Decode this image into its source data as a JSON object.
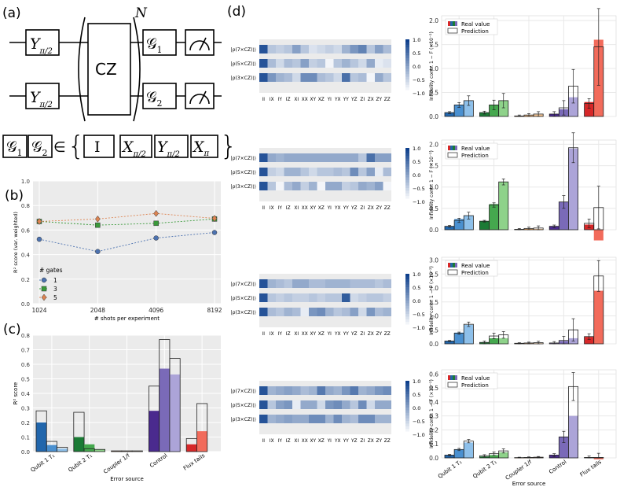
{
  "panel_labels": {
    "a": "(a)",
    "b": "(b)",
    "c": "(c)",
    "d": "(d)"
  },
  "circuit": {
    "y_gate": "Y",
    "y_sub": "π/2",
    "cz": "CZ",
    "repeat": "N",
    "g1": "𝒢",
    "g1_sub": "1",
    "g2": "𝒢",
    "g2_sub": "2",
    "set_lhs_a": "𝒢",
    "set_lhs_a_sub": "1",
    "set_lhs_b": "𝒢",
    "set_lhs_b_sub": "2",
    "member": "∈",
    "gates": [
      {
        "s": "I",
        "sub": ""
      },
      {
        "s": "X",
        "sub": "π/2"
      },
      {
        "s": "Y",
        "sub": "π/2"
      },
      {
        "s": "X",
        "sub": "π"
      }
    ]
  },
  "chart_data": [
    {
      "id": "b",
      "type": "line",
      "ylabel": "R² score (var. weighted)",
      "xlabel": "# shots per experiment",
      "categories": [
        "1024",
        "2048",
        "4096",
        "8192"
      ],
      "ylim": [
        0,
        1
      ],
      "yticks": [
        "0.0",
        "0.2",
        "0.4",
        "0.6",
        "0.8",
        "1.0"
      ],
      "legend_title": "# gates",
      "series": [
        {
          "name": "1",
          "color": "#4c72b0",
          "marker": "circle",
          "values": [
            0.525,
            0.425,
            0.535,
            0.58
          ]
        },
        {
          "name": "3",
          "color": "#3a9a3a",
          "marker": "square",
          "values": [
            0.67,
            0.64,
            0.655,
            0.69
          ]
        },
        {
          "name": "5",
          "color": "#dd8452",
          "marker": "diamond",
          "values": [
            0.67,
            0.69,
            0.735,
            0.695
          ]
        }
      ]
    },
    {
      "id": "c",
      "type": "bar",
      "ylabel": "R² score",
      "xlabel": "Error source",
      "ylim": [
        0,
        0.8
      ],
      "yticks": [
        "0.0",
        "0.1",
        "0.2",
        "0.3",
        "0.4",
        "0.5",
        "0.6",
        "0.7",
        "0.8"
      ],
      "categories": [
        "Qubit 1 T₁",
        "Qubit 2 T₁",
        "Coupler 1/f",
        "Control",
        "Flux tails"
      ],
      "outline": [
        [
          0.28,
          0.07,
          0.03
        ],
        [
          0.27,
          0.02,
          0.015
        ],
        [
          0.005,
          0.005,
          0.005
        ],
        [
          0.45,
          0.77,
          0.64
        ],
        [
          0.09,
          0.33,
          0.0
        ]
      ],
      "filled": [
        [
          0.2,
          0.045,
          0.02
        ],
        [
          0.1,
          0.05,
          0.015
        ],
        [
          0.002,
          0.002,
          0.002
        ],
        [
          0.28,
          0.57,
          0.53
        ],
        [
          0.05,
          0.14,
          0.0
        ]
      ]
    },
    {
      "id": "d",
      "type": "bar",
      "legend": [
        "Real value",
        "Prediction"
      ],
      "ylabel": "Infidelity contr. 1 − F (×10⁻²)",
      "xlabel": "Error source",
      "categories": [
        "Qubit 1 T₁",
        "Qubit 2 T₁",
        "Coupler 1/f",
        "Control",
        "Flux tails"
      ],
      "rows": [
        {
          "ylim": [
            0,
            2.1
          ],
          "yticks": [
            "0.0",
            "0.5",
            "1.0",
            "1.5",
            "2.0"
          ],
          "real": [
            [
              0.08,
              0.24,
              0.33
            ],
            [
              0.08,
              0.24,
              0.33
            ],
            [
              0.0,
              0.02,
              0.04
            ],
            [
              0.05,
              0.15,
              0.4
            ],
            [
              0.3,
              1.6,
              0
            ]
          ],
          "pred": [
            [
              0.08,
              0.24,
              0.33
            ],
            [
              0.08,
              0.24,
              0.33
            ],
            [
              0.01,
              0.03,
              0.05
            ],
            [
              0.05,
              0.18,
              0.63
            ],
            [
              0.27,
              1.45,
              0
            ]
          ],
          "err": [
            [
              0.02,
              0.05,
              0.1
            ],
            [
              0.03,
              0.1,
              0.15
            ],
            [
              0.02,
              0.03,
              0.05
            ],
            [
              0.05,
              0.15,
              0.35
            ],
            [
              0.1,
              0.8,
              0
            ]
          ]
        },
        {
          "ylim": [
            0,
            2.1
          ],
          "yticks": [
            "0.0",
            "0.5",
            "1.0",
            "1.5",
            "2.0"
          ],
          "real": [
            [
              0.08,
              0.25,
              0.33
            ],
            [
              0.2,
              0.6,
              1.12
            ],
            [
              0.01,
              0.02,
              0.02
            ],
            [
              0.08,
              0.65,
              1.9
            ],
            [
              0.12,
              -0.25,
              0
            ]
          ],
          "pred": [
            [
              0.08,
              0.22,
              0.33
            ],
            [
              0.2,
              0.58,
              1.12
            ],
            [
              0.01,
              0.03,
              0.04
            ],
            [
              0.08,
              0.65,
              1.92
            ],
            [
              0.15,
              0.52,
              0
            ]
          ],
          "err": [
            [
              0.02,
              0.05,
              0.08
            ],
            [
              0.02,
              0.05,
              0.07
            ],
            [
              0.02,
              0.03,
              0.05
            ],
            [
              0.03,
              0.15,
              0.35
            ],
            [
              0.1,
              0.5,
              0
            ]
          ]
        },
        {
          "ylim": [
            0,
            3.1
          ],
          "yticks": [
            "0.0",
            "0.5",
            "1.0",
            "1.5",
            "2.0",
            "2.5",
            "3.0"
          ],
          "real": [
            [
              0.1,
              0.4,
              0.68
            ],
            [
              0.05,
              0.2,
              0.2
            ],
            [
              0.01,
              0.02,
              0.02
            ],
            [
              0.02,
              0.1,
              0.2
            ],
            [
              0.25,
              1.9,
              0
            ]
          ],
          "pred": [
            [
              0.1,
              0.38,
              0.7
            ],
            [
              0.05,
              0.28,
              0.32
            ],
            [
              0.02,
              0.03,
              0.04
            ],
            [
              0.03,
              0.12,
              0.5
            ],
            [
              0.26,
              2.43,
              0
            ]
          ],
          "err": [
            [
              0.02,
              0.04,
              0.08
            ],
            [
              0.05,
              0.1,
              0.12
            ],
            [
              0.02,
              0.03,
              0.05
            ],
            [
              0.05,
              0.15,
              0.4
            ],
            [
              0.1,
              0.55,
              0
            ]
          ]
        },
        {
          "ylim": [
            0,
            0.63
          ],
          "yticks": [
            "0.0",
            "0.1",
            "0.2",
            "0.3",
            "0.4",
            "0.5",
            "0.6"
          ],
          "real": [
            [
              0.02,
              0.06,
              0.11
            ],
            [
              0.01,
              0.02,
              0.04
            ],
            [
              0.0,
              0.0,
              0.005
            ],
            [
              0.02,
              0.15,
              0.3
            ],
            [
              0.003,
              -0.01,
              0
            ]
          ],
          "pred": [
            [
              0.02,
              0.06,
              0.12
            ],
            [
              0.015,
              0.03,
              0.05
            ],
            [
              0.002,
              0.003,
              0.005
            ],
            [
              0.02,
              0.15,
              0.51
            ],
            [
              0.003,
              0.003,
              0
            ]
          ],
          "err": [
            [
              0.005,
              0.008,
              0.012
            ],
            [
              0.008,
              0.012,
              0.015
            ],
            [
              0.003,
              0.004,
              0.005
            ],
            [
              0.01,
              0.04,
              0.1
            ],
            [
              0.01,
              0.03,
              0
            ]
          ]
        }
      ]
    },
    {
      "id": "d-heatmaps",
      "type": "heatmap",
      "rows": [
        "|ρ(7×CZ)⟩⟩",
        "|ρ(5×CZ)⟩⟩",
        "|ρ(3×CZ)⟩⟩"
      ],
      "columns": [
        "II",
        "IX",
        "IY",
        "IZ",
        "XI",
        "XX",
        "XY",
        "XZ",
        "YI",
        "YX",
        "YY",
        "YZ",
        "ZI",
        "ZX",
        "ZY",
        "ZZ"
      ],
      "colorbar_ticks": [
        "1.0",
        "0.5",
        "0.0",
        "−0.5",
        "−1.0"
      ],
      "vmin": -1,
      "vmax": 1,
      "maps": [
        [
          [
            0.9,
            0.3,
            0.25,
            0.3,
            0.5,
            0.3,
            0.15,
            0.2,
            0.25,
            0.2,
            0.4,
            0.55,
            0.65,
            0.3,
            0.5,
            0.35
          ],
          [
            0.9,
            0.35,
            0.2,
            0.35,
            0.3,
            0.5,
            0.25,
            0.3,
            0.05,
            0.3,
            0.4,
            0.3,
            0.2,
            0.45,
            0.1,
            0.15
          ],
          [
            0.9,
            0.55,
            0.4,
            0.35,
            0.2,
            0.6,
            0.6,
            0.35,
            0.3,
            0.2,
            0.75,
            0.3,
            0.35,
            0.05,
            0.45,
            0.3
          ]
        ],
        [
          [
            0.9,
            0.45,
            0.4,
            0.45,
            0.45,
            0.45,
            0.45,
            0.45,
            0.45,
            0.45,
            0.45,
            0.45,
            0.3,
            0.75,
            0.5,
            0.5
          ],
          [
            0.9,
            0.25,
            0.2,
            0.4,
            0.4,
            0.3,
            0.2,
            0.3,
            0.3,
            0.35,
            0.3,
            0.6,
            0.3,
            0.5,
            0.1,
            0.35
          ],
          [
            0.9,
            0.3,
            0.05,
            0.35,
            0.45,
            0.25,
            0.4,
            0.05,
            0.45,
            0.45,
            0.25,
            0.3,
            0.45,
            0.4,
            0.5,
            0.05
          ]
        ],
        [
          [
            0.9,
            0.4,
            0.35,
            0.3,
            0.45,
            0.45,
            0.35,
            0.35,
            0.4,
            0.4,
            0.4,
            0.35,
            0.35,
            0.35,
            0.3,
            0.35
          ],
          [
            0.9,
            0.3,
            0.25,
            0.3,
            0.25,
            0.25,
            0.3,
            0.25,
            0.3,
            0.3,
            0.85,
            0.2,
            0.25,
            0.3,
            0.3,
            0.25
          ],
          [
            0.9,
            0.35,
            0.3,
            0.4,
            0.35,
            0.1,
            0.55,
            0.6,
            0.4,
            0.3,
            0.35,
            0.5,
            0.2,
            0.55,
            0.35,
            0.4
          ]
        ],
        [
          [
            0.9,
            0.4,
            0.45,
            0.5,
            0.45,
            0.35,
            0.4,
            0.7,
            0.45,
            0.4,
            0.55,
            0.7,
            0.4,
            0.45,
            0.55,
            0.6
          ],
          [
            0.9,
            0.3,
            0.5,
            0.55,
            0.1,
            0.45,
            0.45,
            0.2,
            0.55,
            0.6,
            0.45,
            0.3,
            0.6,
            0.2,
            0.45,
            0.45
          ],
          [
            0.9,
            0.4,
            0.45,
            0.5,
            0.45,
            0.45,
            0.6,
            0.6,
            0.4,
            0.6,
            0.4,
            0.35,
            0.6,
            0.6,
            0.4,
            0.4
          ]
        ]
      ]
    }
  ],
  "colors": {
    "blues": [
      "#2166ac",
      "#4a90d0",
      "#8ec0ea"
    ],
    "greens": [
      "#1b7a35",
      "#45a84e",
      "#8ed28a"
    ],
    "oranges": [
      "#e07c2a",
      "#f0a050",
      "#f6c490"
    ],
    "purples": [
      "#4a2a8e",
      "#7a6ab8",
      "#aca4d8"
    ],
    "reds": [
      "#d62728",
      "#f26b5b",
      "#f9a58e"
    ],
    "grid": "#e8e8e8",
    "panel": "#ebebeb"
  }
}
